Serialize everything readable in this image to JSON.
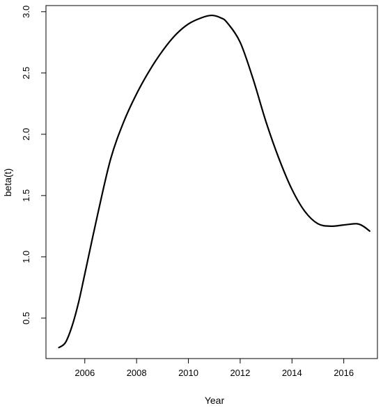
{
  "chart_data": {
    "type": "line",
    "title": "",
    "xlabel": "Year",
    "ylabel": "beta(t)",
    "xlim": [
      2004.5,
      2017.3
    ],
    "ylim": [
      0.17,
      3.05
    ],
    "xticks": [
      2006,
      2008,
      2010,
      2012,
      2014,
      2016
    ],
    "yticks": [
      0.5,
      1.0,
      1.5,
      2.0,
      2.5,
      3.0
    ],
    "xtick_labels": [
      "2006",
      "2008",
      "2010",
      "2012",
      "2014",
      "2016"
    ],
    "ytick_labels": [
      "0.5",
      "1.0",
      "1.5",
      "2.0",
      "2.5",
      "3.0"
    ],
    "grid": false,
    "line_color": "#000000",
    "series": [
      {
        "x": [
          2005.0,
          2005.25,
          2005.5,
          2005.75,
          2006.0,
          2006.5,
          2007.0,
          2007.5,
          2008.0,
          2008.5,
          2009.0,
          2009.5,
          2010.0,
          2010.5,
          2010.9,
          2011.25,
          2011.5,
          2012.0,
          2012.5,
          2013.0,
          2013.5,
          2014.0,
          2014.5,
          2015.0,
          2015.5,
          2016.0,
          2016.5,
          2016.75,
          2017.0
        ],
        "y": [
          0.26,
          0.3,
          0.43,
          0.62,
          0.86,
          1.35,
          1.8,
          2.1,
          2.33,
          2.52,
          2.68,
          2.81,
          2.9,
          2.95,
          2.97,
          2.95,
          2.91,
          2.75,
          2.45,
          2.1,
          1.8,
          1.55,
          1.37,
          1.27,
          1.25,
          1.26,
          1.27,
          1.25,
          1.21
        ]
      }
    ]
  }
}
